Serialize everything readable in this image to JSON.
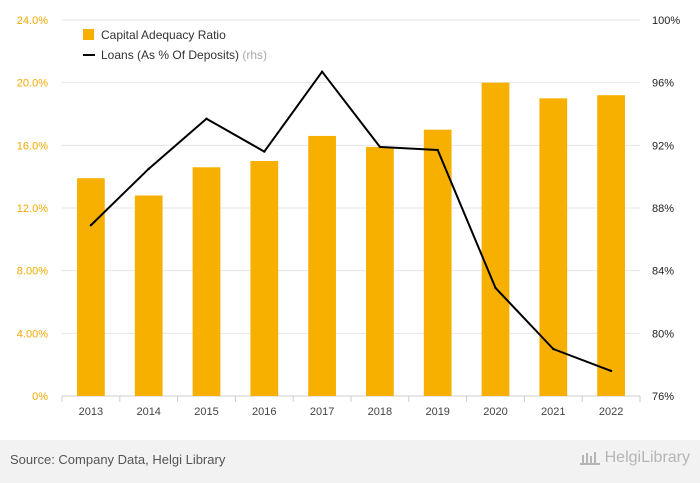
{
  "chart_data": {
    "type": "bar",
    "categories": [
      "2013",
      "2014",
      "2015",
      "2016",
      "2017",
      "2018",
      "2019",
      "2020",
      "2021",
      "2022"
    ],
    "series": [
      {
        "name": "Capital Adequacy Ratio",
        "axis": "left",
        "type": "bar",
        "color": "#f7b000",
        "values": [
          13.9,
          12.8,
          14.6,
          15.0,
          16.6,
          15.9,
          17.0,
          20.0,
          19.0,
          19.2
        ]
      },
      {
        "name": "Loans (As % Of Deposits)",
        "axis": "right",
        "type": "line",
        "color": "#000000",
        "values": [
          86.9,
          90.5,
          93.7,
          91.6,
          96.7,
          91.9,
          91.7,
          82.9,
          79.0,
          77.6
        ]
      }
    ],
    "left_axis": {
      "min": 0,
      "max": 24,
      "ticks": [
        0,
        4,
        8,
        12,
        16,
        20,
        24
      ],
      "tick_labels": [
        "0%",
        "4.00%",
        "8.00%",
        "12.0%",
        "16.0%",
        "20.0%",
        "24.0%"
      ]
    },
    "right_axis": {
      "min": 76,
      "max": 100,
      "ticks": [
        76,
        80,
        84,
        88,
        92,
        96,
        100
      ],
      "tick_labels": [
        "76%",
        "80%",
        "84%",
        "88%",
        "92%",
        "96%",
        "100%"
      ]
    },
    "legend": {
      "bar_label": "Capital Adequacy Ratio",
      "line_label": "Loans (As % Of Deposits)",
      "rhs_tag": "(rhs)",
      "position": "top-left"
    },
    "grid": true
  },
  "footer": {
    "source": "Source: Company Data, Helgi Library",
    "brand": "HelgiLibrary"
  }
}
